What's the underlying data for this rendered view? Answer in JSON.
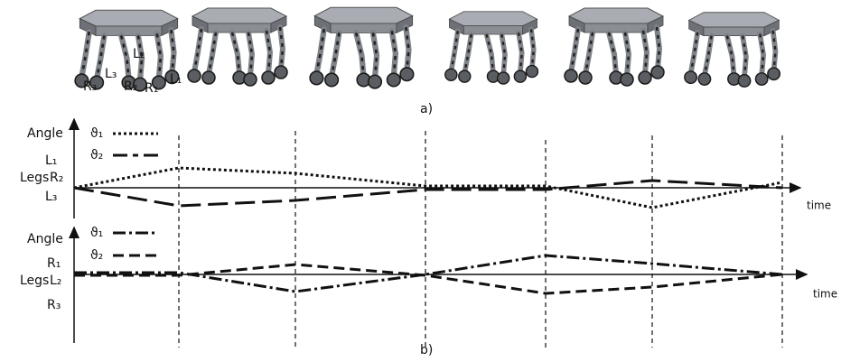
{
  "figure_a": {
    "label": "a)",
    "leg_labels": [
      "R₃",
      "L₃",
      "L₂",
      "R₂",
      "R₁",
      "L₁"
    ]
  },
  "figure_b": {
    "label": "b)",
    "panels": [
      {
        "y_axis_label": "Angle",
        "legs_label": "Legs",
        "x_axis_label": "time",
        "legend": [
          "ϑ₁",
          "ϑ₂"
        ],
        "leg_labels": [
          "L₁",
          "R₂",
          "L₃"
        ]
      },
      {
        "y_axis_label": "Angle",
        "legs_label": "Legs",
        "x_axis_label": "time",
        "legend": [
          "ϑ₁",
          "ϑ₂"
        ],
        "leg_labels": [
          "R₁",
          "L₂",
          "R₃"
        ]
      }
    ]
  }
}
